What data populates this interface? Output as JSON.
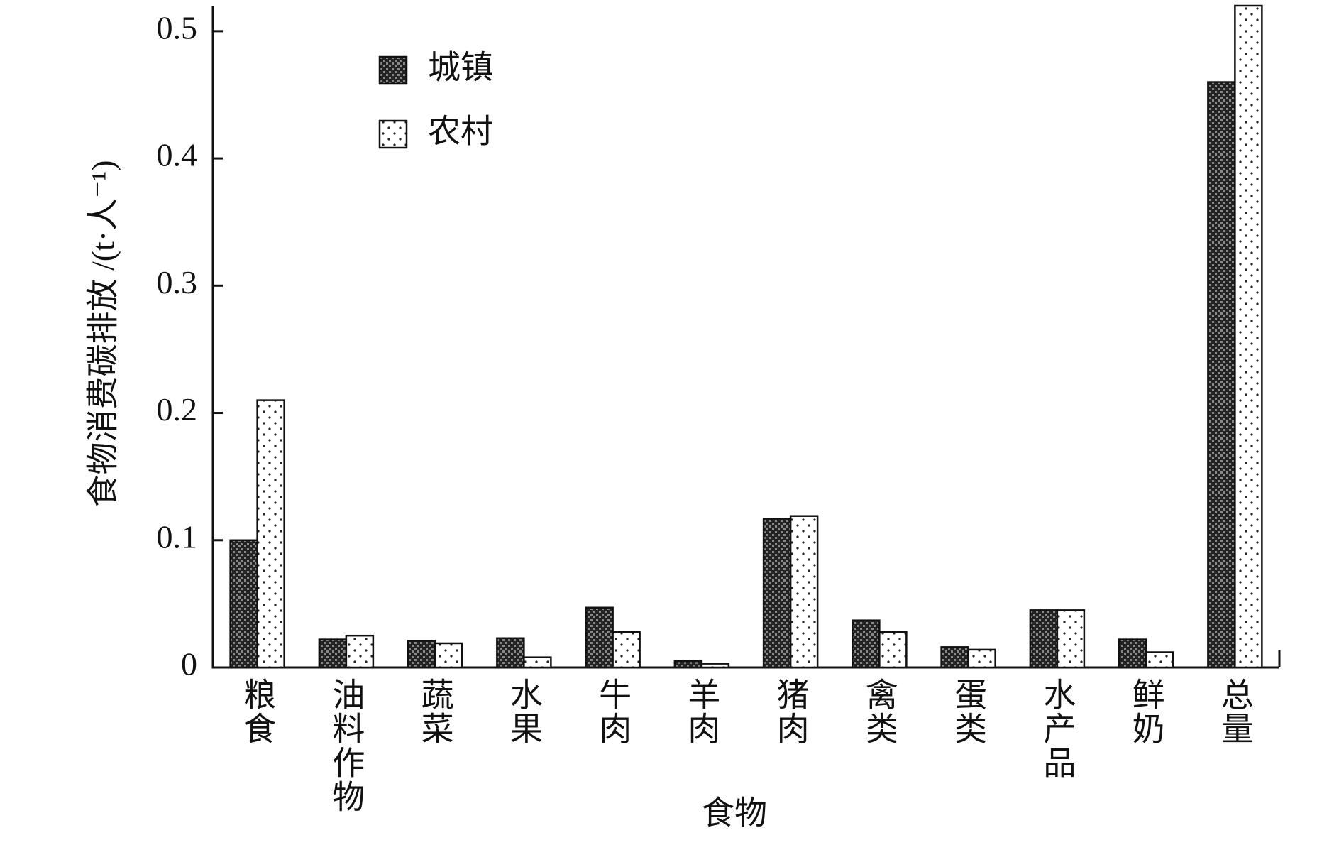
{
  "chart_data": {
    "type": "bar",
    "xlabel": "食物",
    "ylabel": "食物消费碳排放 /(t·人⁻¹)",
    "categories": [
      "粮食",
      "油料作物",
      "蔬菜",
      "水果",
      "牛肉",
      "羊肉",
      "猪肉",
      "禽类",
      "蛋类",
      "水产品",
      "鲜奶",
      "总量"
    ],
    "series": [
      {
        "name": "城镇",
        "color": "#222222",
        "values": [
          0.1,
          0.022,
          0.021,
          0.023,
          0.047,
          0.005,
          0.117,
          0.037,
          0.016,
          0.045,
          0.022,
          0.46
        ]
      },
      {
        "name": "农村",
        "color": "#ffffff",
        "values": [
          0.21,
          0.025,
          0.019,
          0.008,
          0.028,
          0.003,
          0.119,
          0.028,
          0.014,
          0.045,
          0.012,
          0.52
        ]
      }
    ],
    "ylim": [
      0,
      0.52
    ],
    "yticks": [
      0,
      0.1,
      0.2,
      0.3,
      0.4,
      0.5
    ]
  }
}
